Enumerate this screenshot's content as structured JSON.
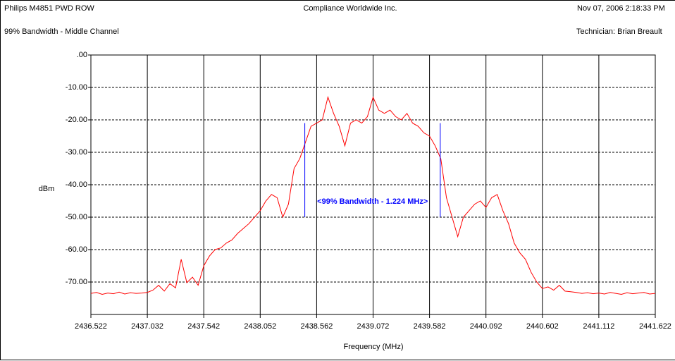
{
  "chart_data": {
    "type": "line",
    "header": {
      "left_top": "Philips M4851 PWD ROW",
      "center_top": "Compliance Worldwide Inc.",
      "right_top": "Nov 07, 2006 2:18:33 PM",
      "left_sub": "99% Bandwidth - Middle Channel",
      "right_sub": "Technician: Brian Breault"
    },
    "xlabel": "Frequency (MHz)",
    "ylabel": "dBm",
    "xlim": [
      2436.522,
      2441.622
    ],
    "xticks": [
      2436.522,
      2437.032,
      2437.542,
      2438.052,
      2438.562,
      2439.072,
      2439.582,
      2440.092,
      2440.602,
      2441.112,
      2441.622
    ],
    "ylim": [
      -80,
      0
    ],
    "yticks": [
      {
        "value": 0,
        "label": ".00"
      },
      {
        "value": -10,
        "label": "-10.00"
      },
      {
        "value": -20,
        "label": "-20.00"
      },
      {
        "value": -30,
        "label": "-30.00"
      },
      {
        "value": -40,
        "label": "-40.00"
      },
      {
        "value": -50,
        "label": "-50.00"
      },
      {
        "value": -60,
        "label": "-60.00"
      },
      {
        "value": -70,
        "label": "-70.00"
      }
    ],
    "grid": true,
    "x": [
      2436.522,
      2436.573,
      2436.624,
      2436.675,
      2436.726,
      2436.777,
      2436.828,
      2436.879,
      2436.93,
      2436.981,
      2437.032,
      2437.083,
      2437.134,
      2437.185,
      2437.236,
      2437.287,
      2437.338,
      2437.389,
      2437.44,
      2437.491,
      2437.542,
      2437.593,
      2437.644,
      2437.695,
      2437.746,
      2437.797,
      2437.848,
      2437.899,
      2437.95,
      2438.001,
      2438.052,
      2438.103,
      2438.154,
      2438.205,
      2438.256,
      2438.307,
      2438.358,
      2438.409,
      2438.46,
      2438.511,
      2438.562,
      2438.613,
      2438.664,
      2438.715,
      2438.766,
      2438.817,
      2438.868,
      2438.919,
      2438.97,
      2439.021,
      2439.072,
      2439.123,
      2439.174,
      2439.225,
      2439.276,
      2439.327,
      2439.378,
      2439.429,
      2439.48,
      2439.531,
      2439.582,
      2439.633,
      2439.684,
      2439.735,
      2439.786,
      2439.837,
      2439.888,
      2439.939,
      2439.99,
      2440.041,
      2440.092,
      2440.143,
      2440.194,
      2440.245,
      2440.296,
      2440.347,
      2440.398,
      2440.449,
      2440.5,
      2440.551,
      2440.602,
      2440.653,
      2440.704,
      2440.755,
      2440.806,
      2440.857,
      2440.908,
      2440.959,
      2441.01,
      2441.061,
      2441.112,
      2441.163,
      2441.214,
      2441.265,
      2441.316,
      2441.367,
      2441.418,
      2441.469,
      2441.52,
      2441.571,
      2441.622
    ],
    "series": [
      {
        "color": "#ff0000",
        "values": [
          -73.5,
          -73.2,
          -73.8,
          -73.4,
          -73.6,
          -73.1,
          -73.7,
          -73.3,
          -73.5,
          -73.4,
          -73.2,
          -72.5,
          -71.0,
          -72.8,
          -70.5,
          -71.8,
          -63.0,
          -70.2,
          -68.5,
          -71.0,
          -65,
          -62,
          -60,
          -59.5,
          -58,
          -57,
          -55,
          -53.5,
          -52,
          -50,
          -48,
          -45,
          -43,
          -44,
          -50,
          -46,
          -35,
          -32,
          -27,
          -22,
          -21,
          -20,
          -13,
          -18,
          -22,
          -28,
          -21,
          -20,
          -21,
          -19,
          -13,
          -17,
          -18,
          -17,
          -19,
          -20,
          -18,
          -21,
          -22,
          -24,
          -25,
          -28,
          -32,
          -44,
          -50,
          -56,
          -50,
          -48,
          -46,
          -45,
          -47,
          -44,
          -43,
          -48,
          -52,
          -58,
          -61,
          -63,
          -67,
          -70,
          -72,
          -71.5,
          -72.5,
          -71,
          -72.8,
          -73,
          -73.2,
          -73.5,
          -73.3,
          -73.6,
          -73.4,
          -73.7,
          -73.2,
          -73.5,
          -73.8,
          -73.3,
          -73.6,
          -73.4,
          -73.2,
          -73.7,
          -73.5
        ]
      }
    ],
    "bandwidth": {
      "text": "<99% Bandwidth - 1.224 MHz>",
      "color": "#0000ff",
      "x": [
        2438.455,
        2439.679
      ],
      "ylim": [
        -21,
        -50
      ]
    }
  }
}
